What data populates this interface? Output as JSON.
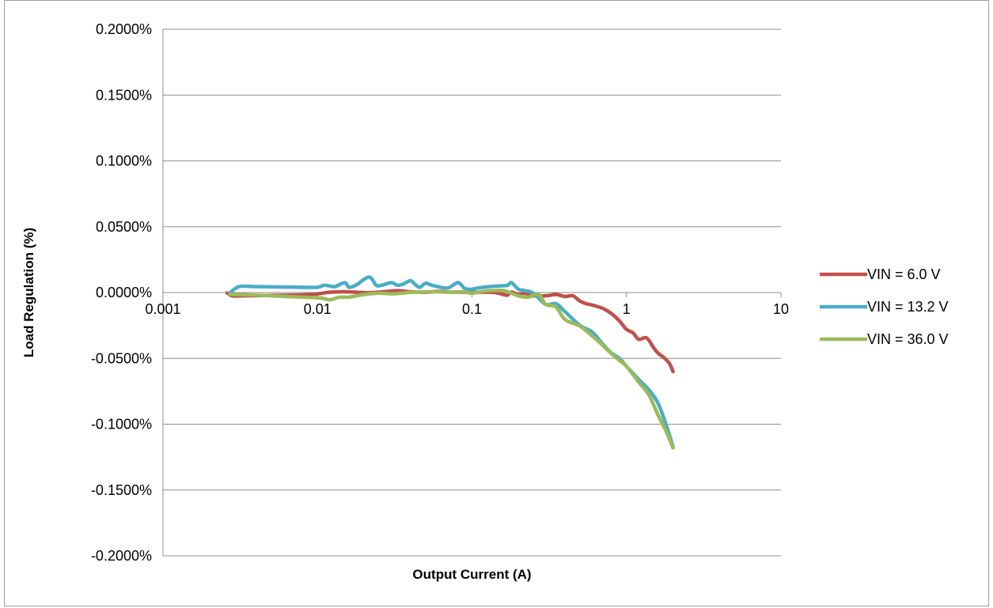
{
  "chart_data": {
    "type": "line",
    "title": "",
    "xlabel": "Output Current (A)",
    "ylabel": "Load Regulation (%)",
    "x_scale": "log",
    "xlim": [
      0.001,
      10
    ],
    "ylim": [
      -0.2,
      0.2
    ],
    "grid": "horizontal",
    "legend_position": "right",
    "x_ticks": [
      "0.001",
      "0.01",
      "0.1",
      "1",
      "10"
    ],
    "y_ticks": [
      "0.2000%",
      "0.1500%",
      "0.1000%",
      "0.0500%",
      "0.0000%",
      "-0.0500%",
      "-0.1000%",
      "-0.1500%",
      "-0.2000%"
    ],
    "series": [
      {
        "name": "VIN = 6.0 V",
        "color": "#c0504d",
        "x": [
          0.0026,
          0.0028,
          0.0032,
          0.005,
          0.008,
          0.01,
          0.012,
          0.015,
          0.018,
          0.022,
          0.028,
          0.033,
          0.04,
          0.05,
          0.06,
          0.07,
          0.08,
          0.09,
          0.1,
          0.12,
          0.14,
          0.16,
          0.17,
          0.18,
          0.2,
          0.22,
          0.25,
          0.3,
          0.35,
          0.4,
          0.45,
          0.5,
          0.55,
          0.6,
          0.7,
          0.8,
          0.9,
          1.0,
          1.1,
          1.2,
          1.35,
          1.5,
          1.6,
          1.75,
          1.9,
          2.0
        ],
        "y": [
          -0.0003,
          -0.0025,
          -0.0025,
          -0.0022,
          -0.0018,
          -0.001,
          0.0002,
          0.0006,
          0.0002,
          -0.0001,
          0.0008,
          0.0014,
          0.0006,
          0.0002,
          0.0009,
          0.0004,
          0.0003,
          0.0002,
          0.0001,
          0.0002,
          0.0001,
          -0.0015,
          -0.002,
          0.0004,
          -0.0015,
          -0.0005,
          -0.0025,
          -0.0025,
          -0.0015,
          -0.003,
          -0.0025,
          -0.0065,
          -0.0085,
          -0.0095,
          -0.012,
          -0.016,
          -0.0215,
          -0.028,
          -0.0305,
          -0.0355,
          -0.0345,
          -0.042,
          -0.046,
          -0.0495,
          -0.054,
          -0.06
        ]
      },
      {
        "name": "VIN = 13.2 V",
        "color": "#4bacc6",
        "x": [
          0.0027,
          0.0031,
          0.004,
          0.006,
          0.008,
          0.01,
          0.011,
          0.012,
          0.013,
          0.015,
          0.016,
          0.018,
          0.02,
          0.022,
          0.024,
          0.026,
          0.03,
          0.033,
          0.036,
          0.04,
          0.043,
          0.046,
          0.05,
          0.055,
          0.06,
          0.07,
          0.08,
          0.085,
          0.09,
          0.1,
          0.11,
          0.13,
          0.15,
          0.17,
          0.18,
          0.2,
          0.22,
          0.25,
          0.3,
          0.35,
          0.4,
          0.5,
          0.6,
          0.7,
          0.8,
          0.9,
          1.0,
          1.2,
          1.4,
          1.6,
          1.8,
          2.0
        ],
        "y": [
          -0.0005,
          0.0045,
          0.0045,
          0.0042,
          0.004,
          0.004,
          0.0055,
          0.005,
          0.0045,
          0.0075,
          0.004,
          0.006,
          0.01,
          0.0115,
          0.0055,
          0.0055,
          0.0075,
          0.0055,
          0.0065,
          0.009,
          0.006,
          0.004,
          0.007,
          0.0055,
          0.0045,
          0.0035,
          0.0075,
          0.006,
          0.003,
          0.0025,
          0.0035,
          0.0045,
          0.005,
          0.0055,
          0.0075,
          0.0025,
          0.0015,
          -0.0005,
          -0.009,
          -0.0085,
          -0.0145,
          -0.025,
          -0.03,
          -0.039,
          -0.046,
          -0.05,
          -0.056,
          -0.066,
          -0.074,
          -0.084,
          -0.1,
          -0.117
        ]
      },
      {
        "name": "VIN = 36.0 V",
        "color": "#9bbb59",
        "x": [
          0.0027,
          0.0031,
          0.005,
          0.008,
          0.01,
          0.011,
          0.012,
          0.014,
          0.016,
          0.02,
          0.025,
          0.03,
          0.035,
          0.04,
          0.05,
          0.06,
          0.07,
          0.08,
          0.09,
          0.1,
          0.12,
          0.14,
          0.16,
          0.18,
          0.2,
          0.23,
          0.27,
          0.3,
          0.35,
          0.4,
          0.5,
          0.6,
          0.7,
          0.8,
          0.9,
          1.0,
          1.2,
          1.4,
          1.6,
          1.8,
          2.0
        ],
        "y": [
          -0.0015,
          -0.0015,
          -0.0025,
          -0.0035,
          -0.004,
          -0.0045,
          -0.0055,
          -0.0035,
          -0.0035,
          -0.0015,
          -0.0005,
          -0.001,
          -0.0005,
          0.0002,
          0.0005,
          0.0006,
          0.0002,
          0.0003,
          0.0005,
          -0.0005,
          0.001,
          0.0015,
          0.0015,
          -0.0005,
          -0.0025,
          -0.0035,
          -0.0015,
          -0.009,
          -0.011,
          -0.0205,
          -0.0255,
          -0.033,
          -0.04,
          -0.0465,
          -0.0515,
          -0.056,
          -0.068,
          -0.078,
          -0.093,
          -0.105,
          -0.118
        ]
      }
    ]
  }
}
